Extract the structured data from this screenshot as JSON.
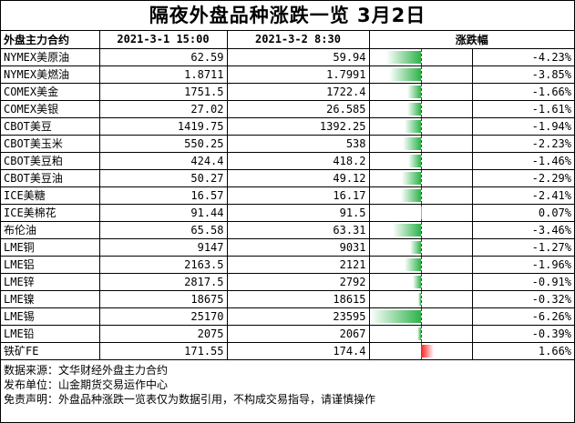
{
  "title": "隔夜外盘品种涨跌一览 3月2日",
  "headers": {
    "name": "外盘主力合约",
    "date1": "2021-3-1 15:00",
    "date2": "2021-3-2 8:30",
    "change": "涨跌幅"
  },
  "colors": {
    "down": "#2db34a",
    "up": "#ff1a1a"
  },
  "rows": [
    {
      "name": "NYMEX美原油",
      "v1": "62.59",
      "v2": "59.94",
      "pct": "-4.23%",
      "change": -4.23
    },
    {
      "name": "NYMEX美燃油",
      "v1": "1.8711",
      "v2": "1.7991",
      "pct": "-3.85%",
      "change": -3.85
    },
    {
      "name": "COMEX美金",
      "v1": "1751.5",
      "v2": "1722.4",
      "pct": "-1.66%",
      "change": -1.66
    },
    {
      "name": "COMEX美银",
      "v1": "27.02",
      "v2": "26.585",
      "pct": "-1.61%",
      "change": -1.61
    },
    {
      "name": "CBOT美豆",
      "v1": "1419.75",
      "v2": "1392.25",
      "pct": "-1.94%",
      "change": -1.94
    },
    {
      "name": "CBOT美玉米",
      "v1": "550.25",
      "v2": "538",
      "pct": "-2.23%",
      "change": -2.23
    },
    {
      "name": "CBOT美豆粕",
      "v1": "424.4",
      "v2": "418.2",
      "pct": "-1.46%",
      "change": -1.46
    },
    {
      "name": "CBOT美豆油",
      "v1": "50.27",
      "v2": "49.12",
      "pct": "-2.29%",
      "change": -2.29
    },
    {
      "name": "ICE美糖",
      "v1": "16.57",
      "v2": "16.17",
      "pct": "-2.41%",
      "change": -2.41
    },
    {
      "name": "ICE美棉花",
      "v1": "91.44",
      "v2": "91.5",
      "pct": "0.07%",
      "change": 0.07
    },
    {
      "name": "布伦油",
      "v1": "65.58",
      "v2": "63.31",
      "pct": "-3.46%",
      "change": -3.46
    },
    {
      "name": "LME铜",
      "v1": "9147",
      "v2": "9031",
      "pct": "-1.27%",
      "change": -1.27
    },
    {
      "name": "LME铝",
      "v1": "2163.5",
      "v2": "2121",
      "pct": "-1.96%",
      "change": -1.96
    },
    {
      "name": "LME锌",
      "v1": "2817.5",
      "v2": "2792",
      "pct": "-0.91%",
      "change": -0.91
    },
    {
      "name": "LME镍",
      "v1": "18675",
      "v2": "18615",
      "pct": "-0.32%",
      "change": -0.32
    },
    {
      "name": "LME锡",
      "v1": "25170",
      "v2": "23595",
      "pct": "-6.26%",
      "change": -6.26
    },
    {
      "name": "LME铅",
      "v1": "2075",
      "v2": "2067",
      "pct": "-0.39%",
      "change": -0.39
    },
    {
      "name": "铁矿FE",
      "v1": "171.55",
      "v2": "174.4",
      "pct": "1.66%",
      "change": 1.66
    }
  ],
  "notes": [
    "数据来源：文华财经外盘主力合约",
    "发布单位：山金期货交易运作中心",
    "免责声明：外盘品种涨跌一览表仅为数据引用，不构成交易指导，请谨慎操作"
  ]
}
